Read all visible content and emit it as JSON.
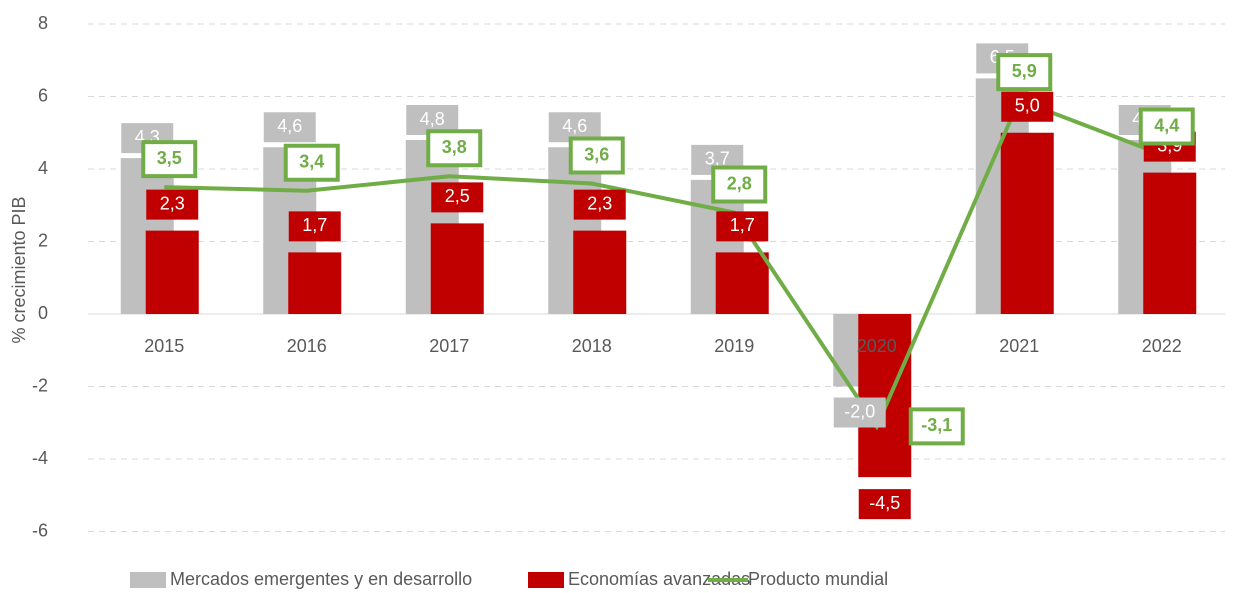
{
  "chart_data": {
    "type": "bar_line",
    "y_label": "% crecimiento PIB",
    "categories": [
      "2015",
      "2016",
      "2017",
      "2018",
      "2019",
      "2020",
      "2021",
      "2022"
    ],
    "ylim": [
      -6,
      8
    ],
    "yticks": [
      -6,
      -4,
      -2,
      0,
      2,
      4,
      6,
      8
    ],
    "grid": true,
    "legend": "bottom",
    "series": [
      {
        "name": "Mercados emergentes y en desarrollo",
        "type": "bar",
        "color": "#bfbfbf",
        "values": [
          4.3,
          4.6,
          4.8,
          4.6,
          3.7,
          -2.0,
          6.5,
          4.8
        ],
        "value_labels": [
          "4,3",
          "4,6",
          "4,8",
          "4,6",
          "3,7",
          "-2,0",
          "6,5",
          "4,8"
        ]
      },
      {
        "name": "Economías avanzadas",
        "type": "bar",
        "color": "#c00000",
        "values": [
          2.3,
          1.7,
          2.5,
          2.3,
          1.7,
          -4.5,
          5.0,
          3.9
        ],
        "value_labels": [
          "2,3",
          "1,7",
          "2,5",
          "2,3",
          "1,7",
          "-4,5",
          "5,0",
          "3,9"
        ]
      },
      {
        "name": "Producto mundial",
        "type": "line",
        "color": "#70ad47",
        "values": [
          3.5,
          3.4,
          3.8,
          3.6,
          2.8,
          -3.1,
          5.9,
          4.4
        ],
        "value_labels": [
          "3,5",
          "3,4",
          "3,8",
          "3,6",
          "2,8",
          "-3,1",
          "5,9",
          "4,4"
        ]
      }
    ]
  }
}
